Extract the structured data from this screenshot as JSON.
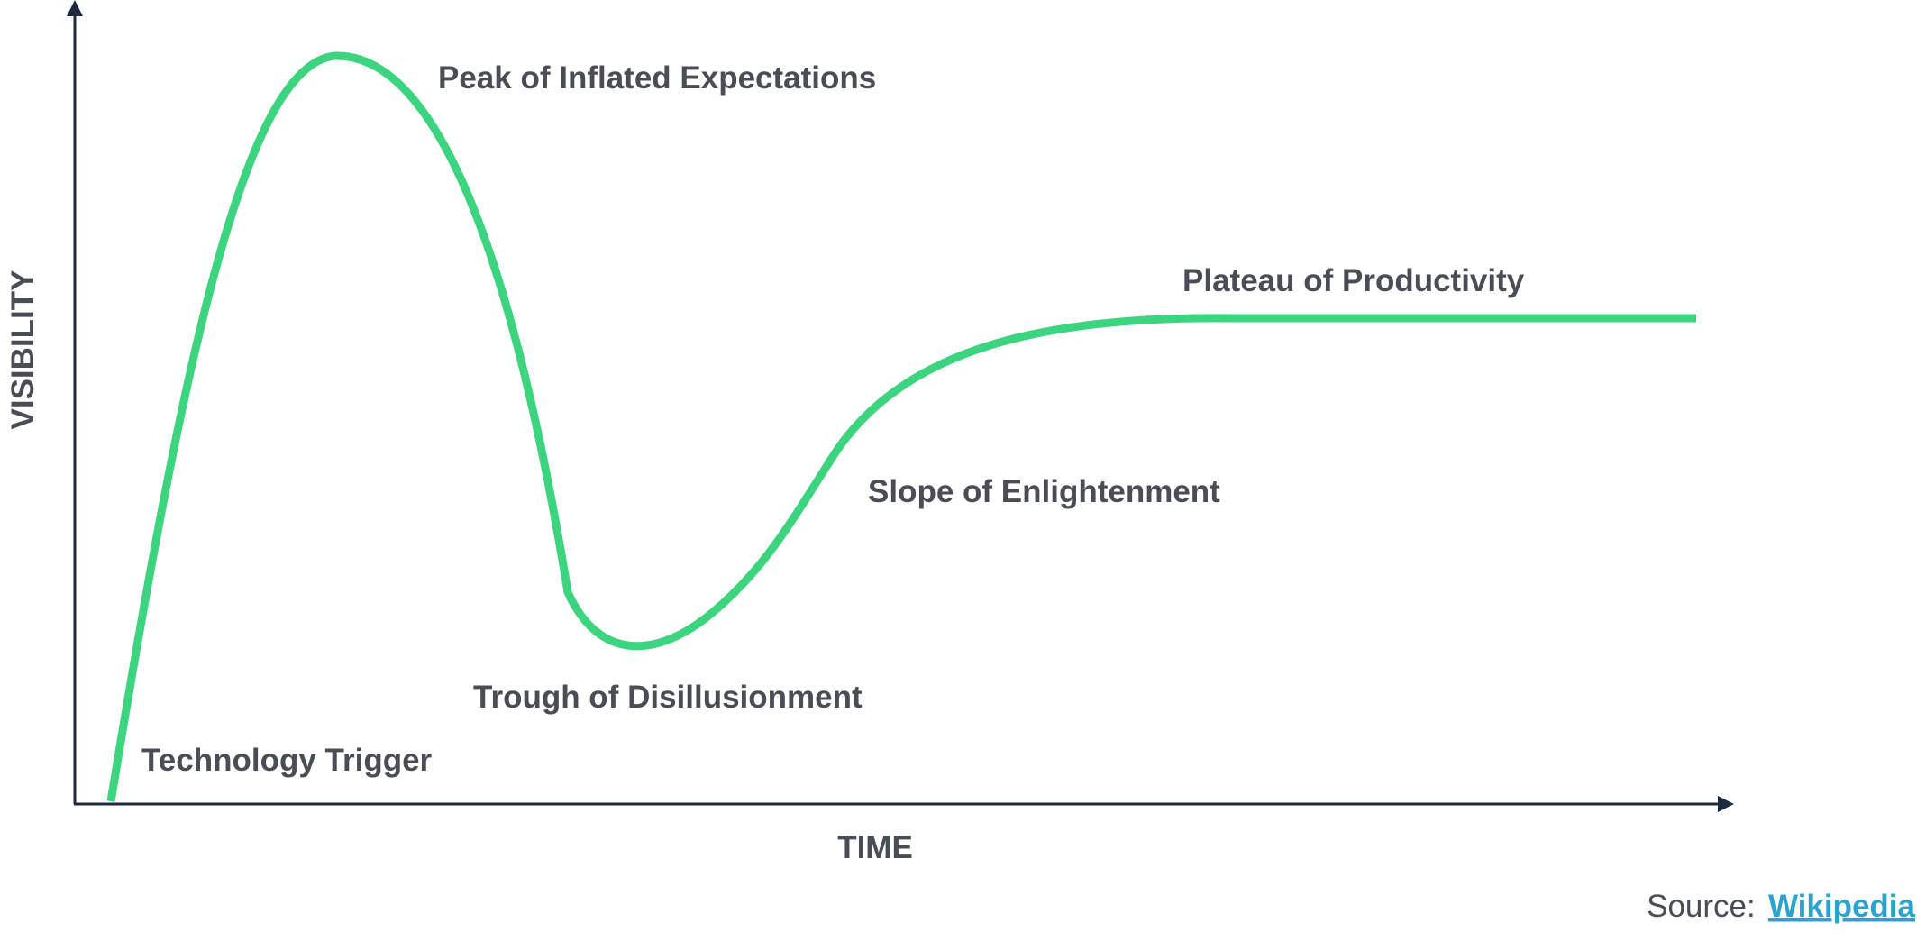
{
  "colors": {
    "curve": "#3dd47f",
    "axis": "#1e2a40",
    "text": "#4a4d55",
    "link": "#2ba3d0"
  },
  "axes": {
    "x_label": "TIME",
    "y_label": "VISIBILITY"
  },
  "phases": [
    {
      "id": "technology-trigger",
      "label": "Technology Trigger"
    },
    {
      "id": "peak-of-inflated-expectations",
      "label": "Peak of Inflated Expectations"
    },
    {
      "id": "trough-of-disillusionment",
      "label": "Trough of Disillusionment"
    },
    {
      "id": "slope-of-enlightenment",
      "label": "Slope of Enlightenment"
    },
    {
      "id": "plateau-of-productivity",
      "label": "Plateau of Productivity"
    }
  ],
  "source": {
    "prefix": "Source: ",
    "link_text": "Wikipedia"
  }
}
